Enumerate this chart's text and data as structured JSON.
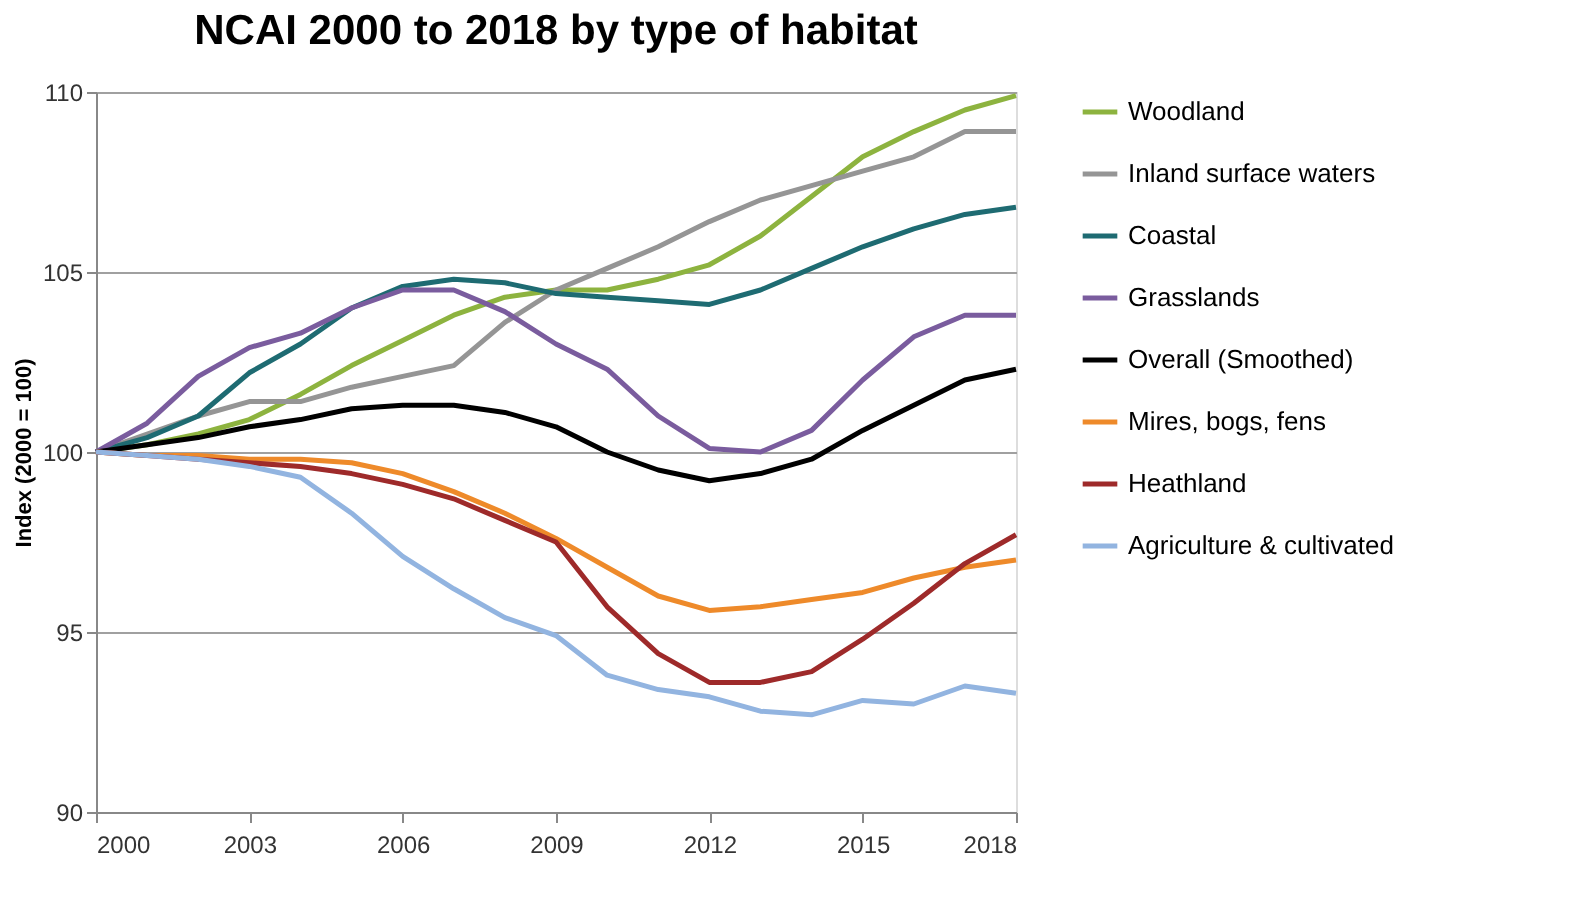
{
  "chart_data": {
    "type": "line",
    "title": "NCAI 2000 to 2018 by type of habitat",
    "ylabel": "Index (2000 = 100)",
    "x": [
      2000,
      2001,
      2002,
      2003,
      2004,
      2005,
      2006,
      2007,
      2008,
      2009,
      2010,
      2011,
      2012,
      2013,
      2014,
      2015,
      2016,
      2017,
      2018
    ],
    "xlim": [
      2000,
      2018
    ],
    "xticks": [
      2000,
      2003,
      2006,
      2009,
      2012,
      2015,
      2018
    ],
    "ylim": [
      90,
      110
    ],
    "yticks": [
      90,
      95,
      100,
      105,
      110
    ],
    "grid": "y",
    "legend": "right",
    "marker": "none",
    "line_style": "solid",
    "series": [
      {
        "name": "Woodland",
        "color": "#8db33f",
        "values": [
          100,
          100.2,
          100.5,
          100.9,
          101.6,
          102.4,
          103.1,
          103.8,
          104.3,
          104.5,
          104.5,
          104.8,
          105.2,
          106.0,
          107.1,
          108.2,
          108.9,
          109.5,
          109.9
        ]
      },
      {
        "name": "Inland surface waters",
        "color": "#959595",
        "values": [
          100,
          100.5,
          101.0,
          101.4,
          101.4,
          101.8,
          102.1,
          102.4,
          103.6,
          104.5,
          105.1,
          105.7,
          106.4,
          107.0,
          107.4,
          107.8,
          108.2,
          108.9,
          108.9
        ]
      },
      {
        "name": "Coastal",
        "color": "#1e6b72",
        "values": [
          100,
          100.4,
          101.0,
          102.2,
          103.0,
          104.0,
          104.6,
          104.8,
          104.7,
          104.4,
          104.3,
          104.2,
          104.1,
          104.5,
          105.1,
          105.7,
          106.2,
          106.6,
          106.8
        ]
      },
      {
        "name": "Grasslands",
        "color": "#7a5c9e",
        "values": [
          100,
          100.8,
          102.1,
          102.9,
          103.3,
          104.0,
          104.5,
          104.5,
          103.9,
          103.0,
          102.3,
          101.0,
          100.1,
          100.0,
          100.6,
          102.0,
          103.2,
          103.8,
          103.8
        ]
      },
      {
        "name": "Overall (Smoothed)",
        "color": "#000000",
        "values": [
          100,
          100.2,
          100.4,
          100.7,
          100.9,
          101.2,
          101.3,
          101.3,
          101.1,
          100.7,
          100.0,
          99.5,
          99.2,
          99.4,
          99.8,
          100.6,
          101.3,
          102.0,
          102.3
        ]
      },
      {
        "name": "Mires, bogs, fens",
        "color": "#ee8a2a",
        "values": [
          100,
          99.9,
          99.9,
          99.8,
          99.8,
          99.7,
          99.4,
          98.9,
          98.3,
          97.6,
          96.8,
          96.0,
          95.6,
          95.7,
          95.9,
          96.1,
          96.5,
          96.8,
          97.0
        ]
      },
      {
        "name": "Heathland",
        "color": "#9e2a2a",
        "values": [
          100,
          99.9,
          99.8,
          99.7,
          99.6,
          99.4,
          99.1,
          98.7,
          98.1,
          97.5,
          95.7,
          94.4,
          93.6,
          93.6,
          93.9,
          94.8,
          95.8,
          96.9,
          97.7
        ]
      },
      {
        "name": "Agriculture & cultivated",
        "color": "#92b4e0",
        "values": [
          100,
          99.9,
          99.8,
          99.6,
          99.3,
          98.3,
          97.1,
          96.2,
          95.4,
          94.9,
          93.8,
          93.4,
          93.2,
          92.8,
          92.7,
          93.1,
          93.0,
          93.5,
          93.3
        ]
      }
    ]
  }
}
